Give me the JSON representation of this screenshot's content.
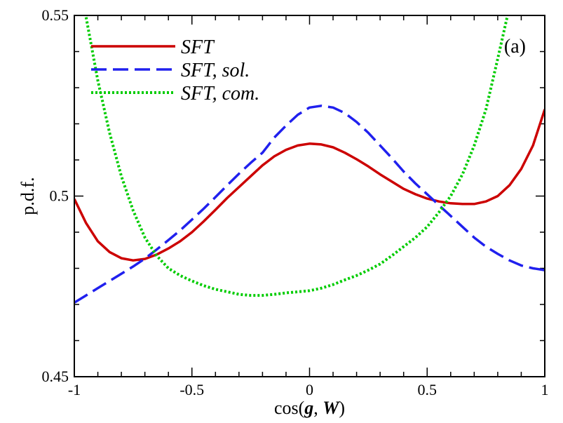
{
  "chart_data": {
    "type": "line",
    "title": "",
    "panel_label": "(a)",
    "xlabel": {
      "prefix": "cos(",
      "g": "g",
      "sep": ", ",
      "w": "W",
      "suffix": ")"
    },
    "ylabel": "p.d.f.",
    "xlim": [
      -1,
      1
    ],
    "ylim": [
      0.45,
      0.55
    ],
    "x_ticks": [
      {
        "value": -1,
        "label": "-1"
      },
      {
        "value": -0.5,
        "label": "-0.5"
      },
      {
        "value": 0,
        "label": "0"
      },
      {
        "value": 0.5,
        "label": "0.5"
      },
      {
        "value": 1,
        "label": "1"
      }
    ],
    "y_ticks": [
      {
        "value": 0.45,
        "label": "0.45"
      },
      {
        "value": 0.5,
        "label": "0.5"
      },
      {
        "value": 0.55,
        "label": "0.55"
      }
    ],
    "legend_position": "top-left",
    "series": [
      {
        "name": "SFT",
        "color": "#cc0000",
        "style": "solid",
        "x": [
          -1.0,
          -0.95,
          -0.9,
          -0.85,
          -0.8,
          -0.75,
          -0.7,
          -0.65,
          -0.6,
          -0.55,
          -0.5,
          -0.45,
          -0.4,
          -0.35,
          -0.3,
          -0.25,
          -0.2,
          -0.15,
          -0.1,
          -0.05,
          0.0,
          0.05,
          0.1,
          0.15,
          0.2,
          0.25,
          0.3,
          0.35,
          0.4,
          0.45,
          0.5,
          0.55,
          0.6,
          0.65,
          0.7,
          0.75,
          0.8,
          0.85,
          0.9,
          0.95,
          1.0
        ],
        "y": [
          0.4992,
          0.4925,
          0.4875,
          0.4845,
          0.4828,
          0.4822,
          0.4826,
          0.4838,
          0.4855,
          0.4875,
          0.49,
          0.493,
          0.4962,
          0.4995,
          0.5025,
          0.5055,
          0.5085,
          0.511,
          0.5128,
          0.514,
          0.5145,
          0.5143,
          0.5135,
          0.512,
          0.5102,
          0.5082,
          0.506,
          0.504,
          0.502,
          0.5005,
          0.4993,
          0.4985,
          0.498,
          0.4978,
          0.4978,
          0.4985,
          0.5,
          0.503,
          0.5075,
          0.514,
          0.524
        ]
      },
      {
        "name": "SFT, sol.",
        "color": "#2020ee",
        "style": "dashed",
        "x": [
          -1.0,
          -0.95,
          -0.9,
          -0.85,
          -0.8,
          -0.75,
          -0.7,
          -0.65,
          -0.6,
          -0.55,
          -0.5,
          -0.45,
          -0.4,
          -0.35,
          -0.3,
          -0.25,
          -0.2,
          -0.15,
          -0.1,
          -0.05,
          0.0,
          0.05,
          0.1,
          0.15,
          0.2,
          0.25,
          0.3,
          0.35,
          0.4,
          0.45,
          0.5,
          0.55,
          0.6,
          0.65,
          0.7,
          0.75,
          0.8,
          0.85,
          0.9,
          0.95,
          1.0
        ],
        "y": [
          0.4705,
          0.4725,
          0.4745,
          0.4765,
          0.4785,
          0.4805,
          0.4827,
          0.4852,
          0.4878,
          0.4905,
          0.4935,
          0.4965,
          0.4997,
          0.503,
          0.5062,
          0.5092,
          0.512,
          0.5162,
          0.5195,
          0.5225,
          0.5245,
          0.525,
          0.5245,
          0.523,
          0.5205,
          0.5175,
          0.514,
          0.5105,
          0.5068,
          0.5035,
          0.5005,
          0.4975,
          0.4945,
          0.4915,
          0.4885,
          0.486,
          0.484,
          0.4822,
          0.4808,
          0.48,
          0.4795
        ]
      },
      {
        "name": "SFT, com.",
        "color": "#00cc00",
        "style": "dotted",
        "x": [
          -0.95,
          -0.9,
          -0.85,
          -0.8,
          -0.75,
          -0.7,
          -0.65,
          -0.6,
          -0.55,
          -0.5,
          -0.45,
          -0.4,
          -0.35,
          -0.3,
          -0.25,
          -0.2,
          -0.15,
          -0.1,
          -0.05,
          0.0,
          0.05,
          0.1,
          0.15,
          0.2,
          0.25,
          0.3,
          0.35,
          0.4,
          0.45,
          0.5,
          0.55,
          0.6,
          0.65,
          0.7,
          0.75,
          0.8,
          0.84
        ],
        "y": [
          0.5495,
          0.532,
          0.5175,
          0.5055,
          0.496,
          0.4885,
          0.4835,
          0.48,
          0.478,
          0.4765,
          0.4752,
          0.4742,
          0.4735,
          0.4728,
          0.4725,
          0.4725,
          0.4728,
          0.4732,
          0.4735,
          0.4738,
          0.4745,
          0.4755,
          0.4768,
          0.478,
          0.4795,
          0.4812,
          0.4835,
          0.486,
          0.4885,
          0.4915,
          0.4955,
          0.5,
          0.506,
          0.514,
          0.524,
          0.538,
          0.5495
        ]
      }
    ]
  }
}
